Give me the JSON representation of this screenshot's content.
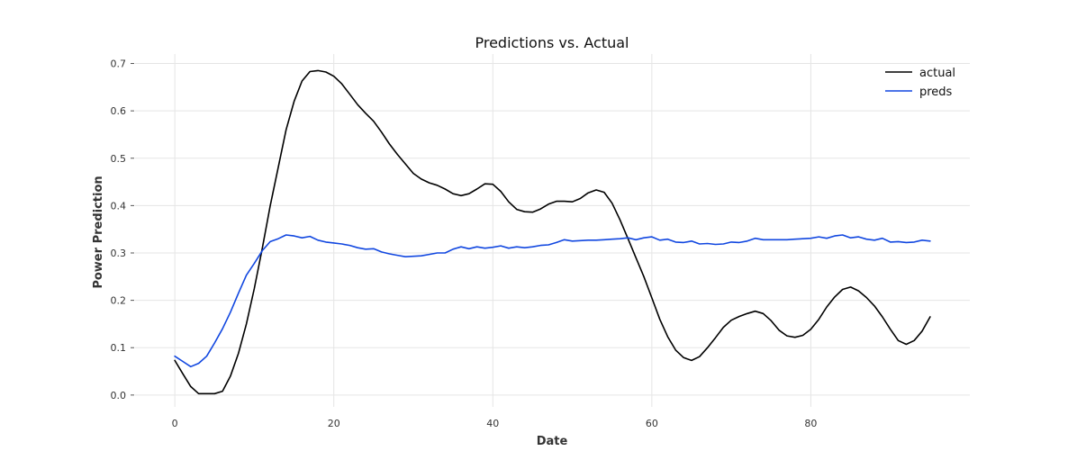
{
  "chart_data": {
    "type": "line",
    "title": "Predictions vs. Actual",
    "xlabel": "Date",
    "ylabel": "Power Prediction",
    "xlim": [
      -5,
      100
    ],
    "ylim": [
      -0.025,
      0.72
    ],
    "x_ticks": [
      0,
      20,
      40,
      60,
      80
    ],
    "y_ticks": [
      0.0,
      0.1,
      0.2,
      0.3,
      0.4,
      0.5,
      0.6,
      0.7
    ],
    "x_tick_labels": [
      "0",
      "20",
      "40",
      "60",
      "80"
    ],
    "y_tick_labels": [
      "0.0",
      "0.1",
      "0.2",
      "0.3",
      "0.4",
      "0.5",
      "0.6",
      "0.7"
    ],
    "grid": true,
    "legend_position": "top-right",
    "series": [
      {
        "name": "actual",
        "color": "#000000",
        "x": [
          0,
          1,
          2,
          3,
          4,
          5,
          6,
          7,
          8,
          9,
          10,
          11,
          12,
          13,
          14,
          15,
          16,
          17,
          18,
          19,
          20,
          21,
          22,
          23,
          24,
          25,
          26,
          27,
          28,
          29,
          30,
          31,
          32,
          33,
          34,
          35,
          36,
          37,
          38,
          39,
          40,
          41,
          42,
          43,
          44,
          45,
          46,
          47,
          48,
          49,
          50,
          51,
          52,
          53,
          54,
          55,
          56,
          57,
          58,
          59,
          60,
          61,
          62,
          63,
          64,
          65,
          66,
          67,
          68,
          69,
          70,
          71,
          72,
          73,
          74,
          75,
          76,
          77,
          78,
          79,
          80,
          81,
          82,
          83,
          84,
          85,
          86,
          87,
          88,
          89,
          90,
          91,
          92,
          93,
          94,
          95
        ],
        "y": [
          0.073,
          0.045,
          0.018,
          0.003,
          0.003,
          0.003,
          0.008,
          0.04,
          0.088,
          0.15,
          0.225,
          0.31,
          0.4,
          0.48,
          0.56,
          0.62,
          0.663,
          0.683,
          0.685,
          0.682,
          0.673,
          0.657,
          0.635,
          0.613,
          0.595,
          0.578,
          0.555,
          0.53,
          0.508,
          0.488,
          0.468,
          0.456,
          0.448,
          0.443,
          0.435,
          0.425,
          0.421,
          0.425,
          0.435,
          0.446,
          0.445,
          0.43,
          0.408,
          0.392,
          0.387,
          0.386,
          0.393,
          0.403,
          0.409,
          0.409,
          0.408,
          0.415,
          0.427,
          0.433,
          0.428,
          0.405,
          0.37,
          0.33,
          0.29,
          0.25,
          0.205,
          0.16,
          0.123,
          0.095,
          0.079,
          0.073,
          0.081,
          0.1,
          0.121,
          0.143,
          0.158,
          0.166,
          0.172,
          0.177,
          0.172,
          0.157,
          0.137,
          0.125,
          0.122,
          0.126,
          0.139,
          0.16,
          0.186,
          0.207,
          0.223,
          0.228,
          0.22,
          0.206,
          0.188,
          0.165,
          0.139,
          0.115,
          0.107,
          0.115,
          0.135,
          0.165
        ]
      },
      {
        "name": "preds",
        "color": "#1147e0",
        "x": [
          0,
          1,
          2,
          3,
          4,
          5,
          6,
          7,
          8,
          9,
          10,
          11,
          12,
          13,
          14,
          15,
          16,
          17,
          18,
          19,
          20,
          21,
          22,
          23,
          24,
          25,
          26,
          27,
          28,
          29,
          30,
          31,
          32,
          33,
          34,
          35,
          36,
          37,
          38,
          39,
          40,
          41,
          42,
          43,
          44,
          45,
          46,
          47,
          48,
          49,
          50,
          51,
          52,
          53,
          54,
          55,
          56,
          57,
          58,
          59,
          60,
          61,
          62,
          63,
          64,
          65,
          66,
          67,
          68,
          69,
          70,
          71,
          72,
          73,
          74,
          75,
          76,
          77,
          78,
          79,
          80,
          81,
          82,
          83,
          84,
          85,
          86,
          87,
          88,
          89,
          90,
          91,
          92,
          93,
          94,
          95
        ],
        "y": [
          0.082,
          0.071,
          0.06,
          0.067,
          0.082,
          0.11,
          0.14,
          0.175,
          0.215,
          0.253,
          0.278,
          0.305,
          0.324,
          0.33,
          0.338,
          0.336,
          0.332,
          0.335,
          0.327,
          0.323,
          0.321,
          0.319,
          0.316,
          0.311,
          0.308,
          0.309,
          0.302,
          0.298,
          0.295,
          0.292,
          0.293,
          0.294,
          0.297,
          0.3,
          0.3,
          0.308,
          0.313,
          0.309,
          0.313,
          0.31,
          0.312,
          0.315,
          0.31,
          0.313,
          0.311,
          0.313,
          0.316,
          0.317,
          0.322,
          0.328,
          0.325,
          0.326,
          0.327,
          0.327,
          0.328,
          0.329,
          0.33,
          0.332,
          0.328,
          0.332,
          0.334,
          0.327,
          0.329,
          0.323,
          0.322,
          0.325,
          0.319,
          0.32,
          0.318,
          0.319,
          0.323,
          0.322,
          0.325,
          0.331,
          0.328,
          0.328,
          0.328,
          0.328,
          0.329,
          0.33,
          0.331,
          0.334,
          0.331,
          0.336,
          0.338,
          0.332,
          0.334,
          0.329,
          0.327,
          0.331,
          0.323,
          0.324,
          0.322,
          0.323,
          0.327,
          0.325
        ]
      }
    ]
  }
}
